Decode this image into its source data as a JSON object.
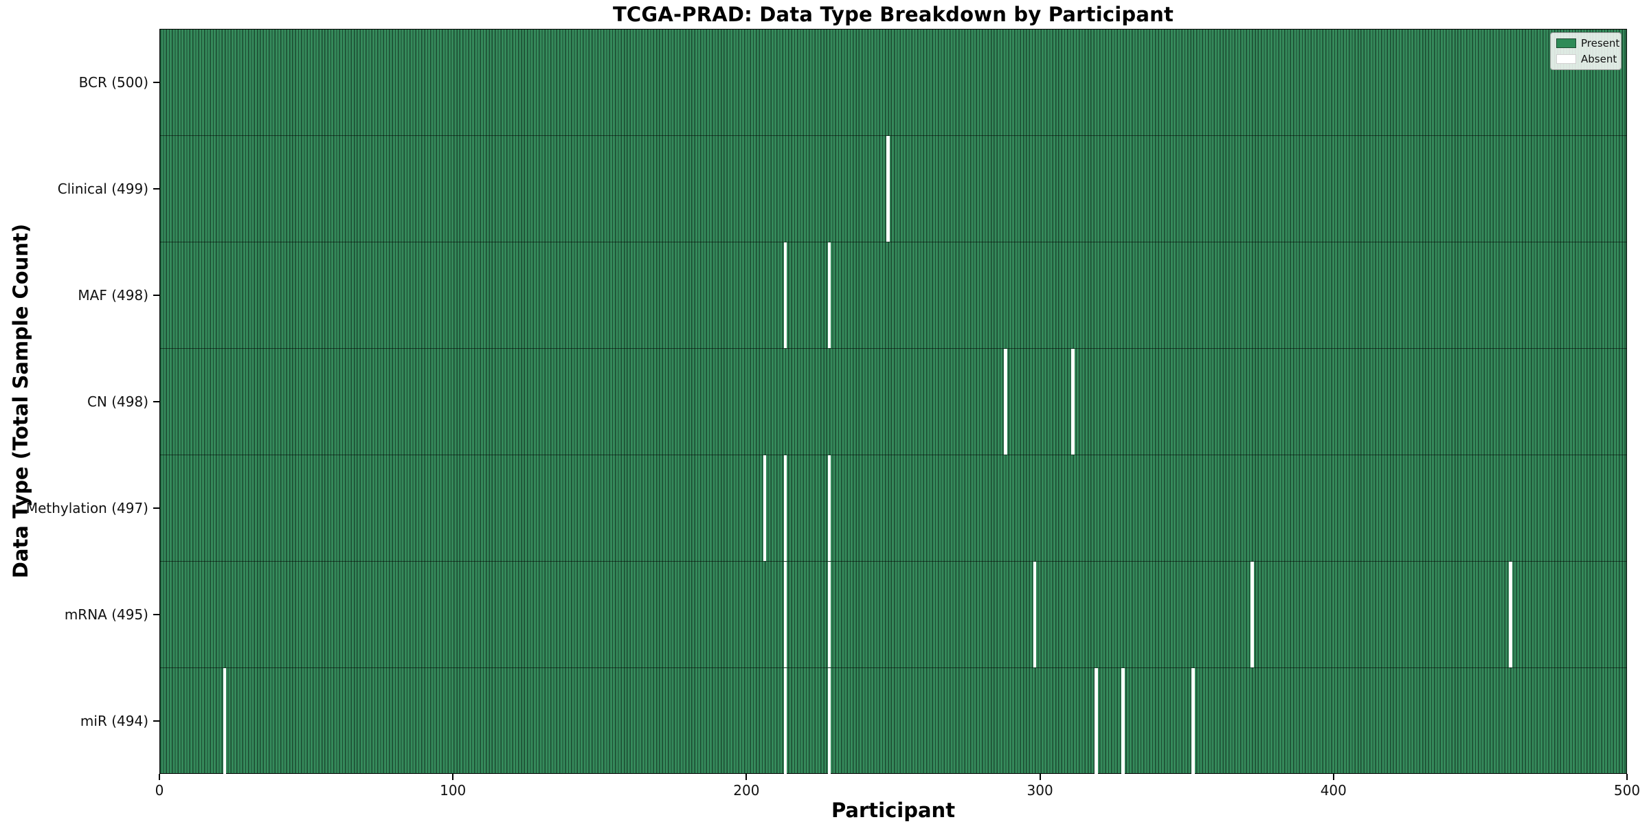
{
  "title": "TCGA-PRAD: Data Type Breakdown by Participant",
  "xlabel": "Participant",
  "ylabel": "Data Type (Total Sample Count)",
  "legend": {
    "present_label": "Present",
    "absent_label": "Absent"
  },
  "colors": {
    "present": "#2e8b57",
    "cell_edge": "#1b4a30",
    "absent": "#ffffff"
  },
  "chart_data": {
    "type": "heatmap",
    "title": "TCGA-PRAD: Data Type Breakdown by Participant",
    "xlabel": "Participant",
    "ylabel": "Data Type (Total Sample Count)",
    "x_range": [
      0,
      500
    ],
    "x_ticks": [
      0,
      100,
      200,
      300,
      400,
      500
    ],
    "n_participants": 500,
    "legend_entries": [
      "Present",
      "Absent"
    ],
    "legend_position": "upper right",
    "grid": false,
    "rows": [
      {
        "label": "BCR (500)",
        "data_type": "BCR",
        "total": 500,
        "absent_participants": []
      },
      {
        "label": "Clinical (499)",
        "data_type": "Clinical",
        "total": 499,
        "absent_participants": [
          248
        ]
      },
      {
        "label": "MAF (498)",
        "data_type": "MAF",
        "total": 498,
        "absent_participants": [
          213,
          228
        ]
      },
      {
        "label": "CN (498)",
        "data_type": "CN",
        "total": 498,
        "absent_participants": [
          288,
          311
        ]
      },
      {
        "label": "Methylation (497)",
        "data_type": "Methylation",
        "total": 497,
        "absent_participants": [
          206,
          213,
          228
        ]
      },
      {
        "label": "mRNA (495)",
        "data_type": "mRNA",
        "total": 495,
        "absent_participants": [
          213,
          228,
          298,
          372,
          460
        ]
      },
      {
        "label": "miR (494)",
        "data_type": "miR",
        "total": 494,
        "absent_participants": [
          22,
          213,
          228,
          319,
          328,
          352
        ]
      }
    ]
  }
}
